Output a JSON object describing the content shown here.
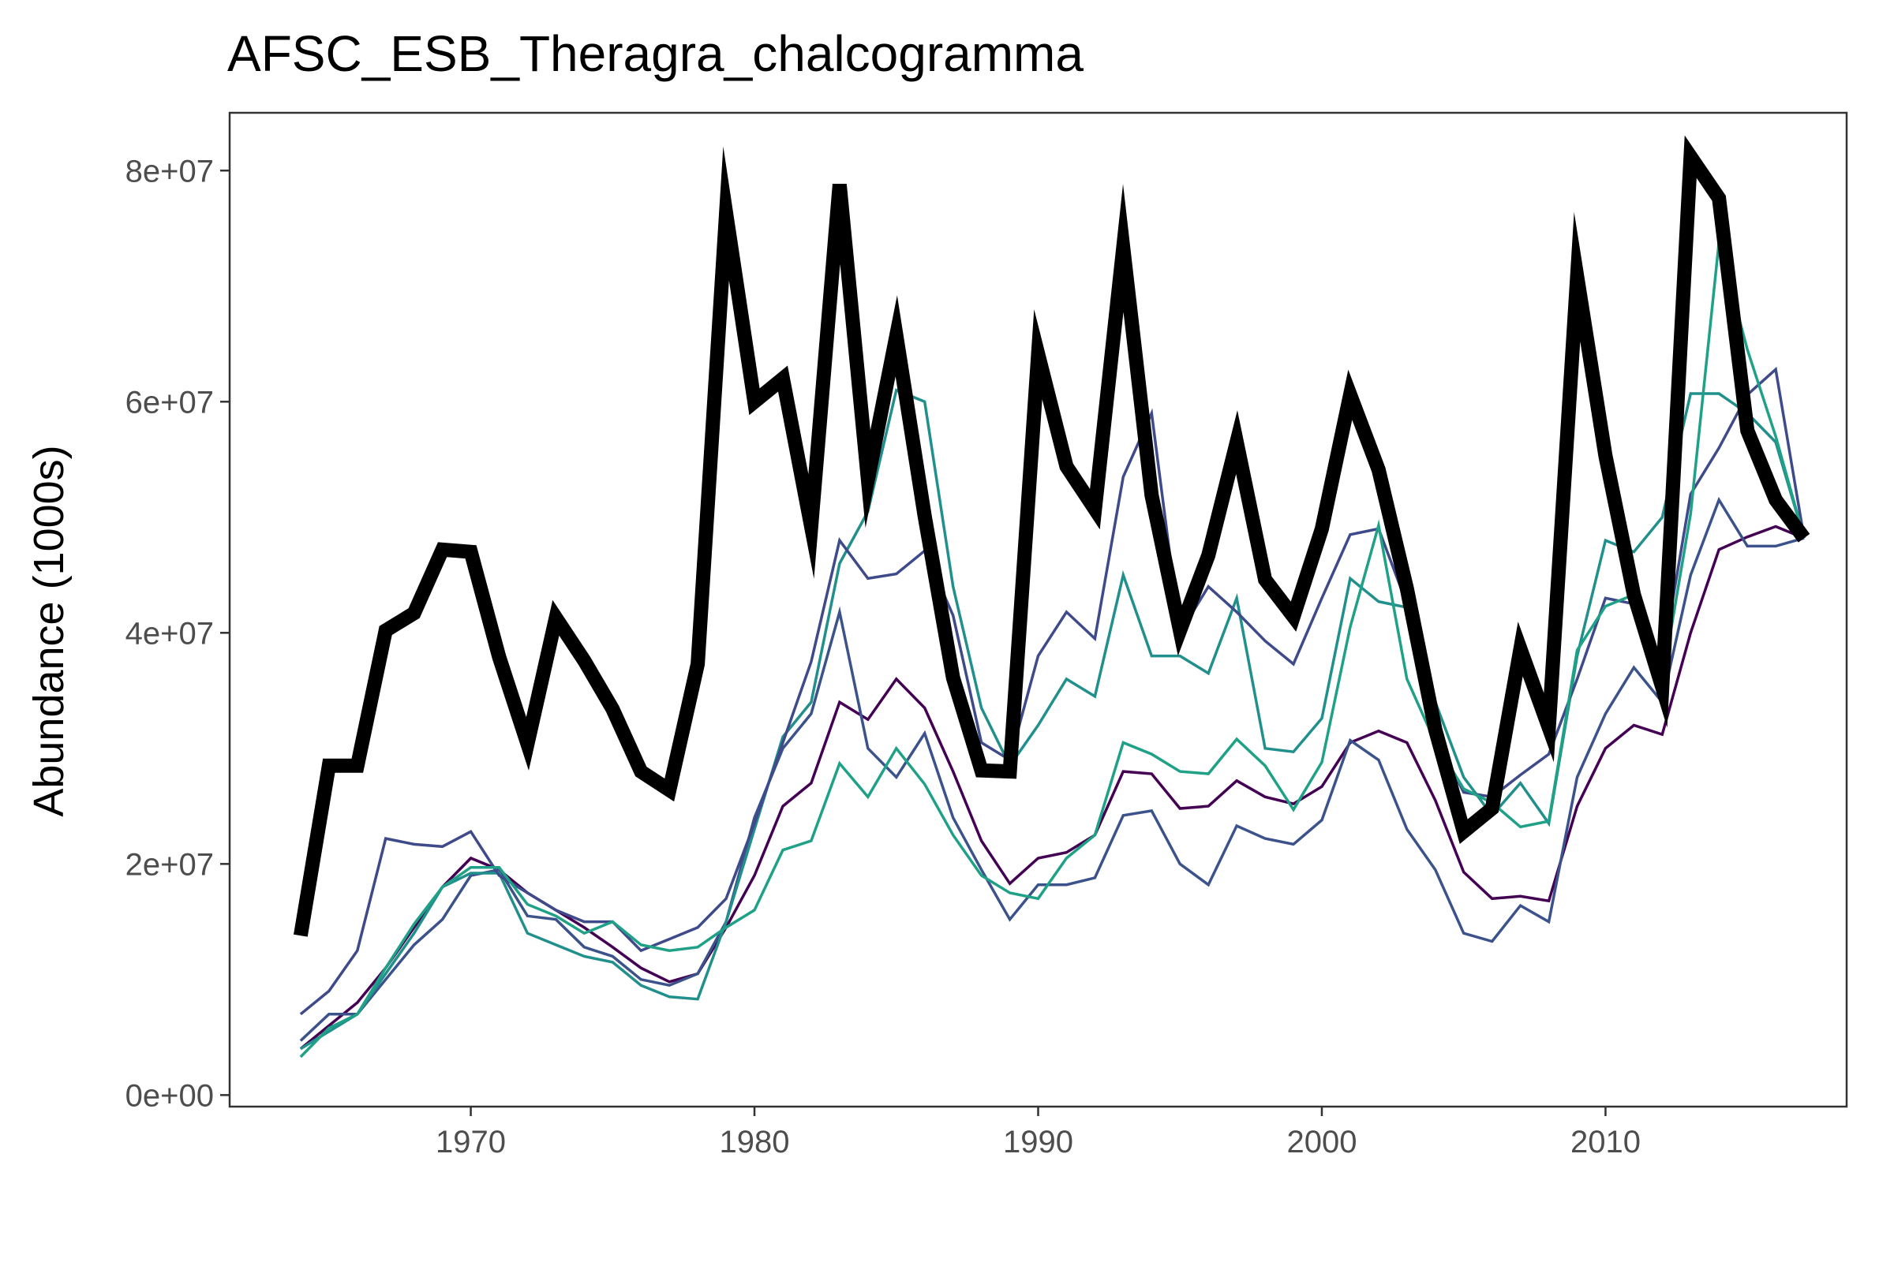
{
  "chart_data": {
    "type": "line",
    "title": "AFSC_ESB_Theragra_chalcogramma",
    "xlabel": "",
    "ylabel": "Abundance (1000s)",
    "xlim": [
      1961.5,
      2018.5
    ],
    "ylim": [
      -1000000,
      85000000
    ],
    "x_ticks": [
      1970,
      1980,
      1990,
      2000,
      2010
    ],
    "x_tick_labels": [
      "1970",
      "1980",
      "1990",
      "2000",
      "2010"
    ],
    "y_ticks": [
      0,
      20000000,
      40000000,
      60000000,
      80000000
    ],
    "y_tick_labels": [
      "0e+00",
      "2e+07",
      "4e+07",
      "6e+07",
      "8e+07"
    ],
    "grid": false,
    "legend": "none",
    "x": [
      1964,
      1965,
      1966,
      1967,
      1968,
      1969,
      1970,
      1971,
      1972,
      1973,
      1974,
      1975,
      1976,
      1977,
      1978,
      1979,
      1980,
      1981,
      1982,
      1983,
      1984,
      1985,
      1986,
      1987,
      1988,
      1989,
      1990,
      1991,
      1992,
      1993,
      1994,
      1995,
      1996,
      1997,
      1998,
      1999,
      2000,
      2001,
      2002,
      2003,
      2004,
      2005,
      2006,
      2007,
      2008,
      2009,
      2010,
      2011,
      2012,
      2013,
      2014,
      2015,
      2016,
      2017
    ],
    "series": [
      {
        "color": "#000000",
        "width": 18,
        "values": [
          13800000,
          28500000,
          28500000,
          40200000,
          41700000,
          47200000,
          47000000,
          37900000,
          30400000,
          41300000,
          37600000,
          33400000,
          28000000,
          26400000,
          37300000,
          76300000,
          60000000,
          62000000,
          49200000,
          78800000,
          53300000,
          65700000,
          50100000,
          36100000,
          28100000,
          28000000,
          64100000,
          54400000,
          50700000,
          73300000,
          51900000,
          40200000,
          46700000,
          56500000,
          44600000,
          41400000,
          49000000,
          60600000,
          54100000,
          43800000,
          31600000,
          22800000,
          24800000,
          38600000,
          31800000,
          70800000,
          55300000,
          43300000,
          35300000,
          81200000,
          77600000,
          57500000,
          51500000,
          48200000
        ]
      },
      {
        "color": "#440154",
        "width": 3.5,
        "values": [
          4000000,
          6000000,
          8000000,
          11000000,
          14500000,
          18000000,
          20500000,
          19500000,
          17500000,
          16000000,
          14500000,
          12800000,
          11000000,
          9800000,
          10500000,
          14500000,
          19000000,
          25000000,
          27000000,
          34000000,
          32500000,
          36000000,
          33500000,
          28000000,
          22000000,
          18300000,
          20500000,
          21000000,
          22500000,
          28000000,
          27800000,
          24800000,
          25000000,
          27200000,
          25800000,
          25200000,
          26700000,
          30500000,
          31500000,
          30500000,
          25500000,
          19300000,
          17000000,
          17200000,
          16800000,
          25000000,
          30000000,
          32000000,
          31200000,
          40000000,
          47200000,
          48300000,
          49200000,
          48200000
        ]
      },
      {
        "color": "#3b528b",
        "width": 3.5,
        "values": [
          4700000,
          7000000,
          7000000,
          10000000,
          13000000,
          15200000,
          19000000,
          19500000,
          15500000,
          15200000,
          12800000,
          12000000,
          10000000,
          9500000,
          10500000,
          15000000,
          24000000,
          30000000,
          33000000,
          41800000,
          30000000,
          27500000,
          31300000,
          24000000,
          19500000,
          15200000,
          18200000,
          18200000,
          18800000,
          24200000,
          24600000,
          20000000,
          18200000,
          23300000,
          22200000,
          21700000,
          23800000,
          30700000,
          29000000,
          23000000,
          19500000,
          14000000,
          13300000,
          16400000,
          15000000,
          27500000,
          33000000,
          37000000,
          34000000,
          45000000,
          51500000,
          47500000,
          47500000,
          48200000
        ]
      },
      {
        "color": "#21908c",
        "width": 3.5,
        "values": [
          4000000,
          5500000,
          7000000,
          10500000,
          14000000,
          18000000,
          19200000,
          19200000,
          14000000,
          13000000,
          12000000,
          11500000,
          9500000,
          8500000,
          8300000,
          15000000,
          23000000,
          31000000,
          34000000,
          46000000,
          50500000,
          61000000,
          60000000,
          44000000,
          33500000,
          28500000,
          32000000,
          36000000,
          34500000,
          45000000,
          38000000,
          38000000,
          36500000,
          43000000,
          30000000,
          29700000,
          32600000,
          44700000,
          42700000,
          42200000,
          34000000,
          27500000,
          24200000,
          27000000,
          23500000,
          38000000,
          48000000,
          47000000,
          50000000,
          60700000,
          60700000,
          59000000,
          56500000,
          48200000
        ]
      },
      {
        "color": "#3e4a89",
        "width": 3.5,
        "values": [
          7000000,
          9000000,
          12500000,
          22200000,
          21700000,
          21500000,
          22800000,
          19000000,
          17500000,
          16000000,
          15000000,
          15000000,
          12500000,
          13500000,
          14500000,
          17000000,
          23500000,
          30500000,
          37500000,
          48000000,
          44700000,
          45100000,
          47100000,
          41500000,
          30500000,
          29000000,
          38000000,
          41800000,
          39500000,
          53500000,
          59000000,
          40000000,
          44000000,
          41800000,
          39300000,
          37300000,
          43000000,
          48500000,
          49000000,
          42500000,
          31000000,
          26200000,
          25800000,
          27700000,
          29500000,
          36000000,
          43000000,
          42500000,
          37500000,
          52000000,
          56000000,
          60600000,
          62800000,
          48200000
        ]
      },
      {
        "color": "#1fa187",
        "width": 3.5,
        "values": [
          3300000,
          5800000,
          7000000,
          11000000,
          14800000,
          18000000,
          19700000,
          19700000,
          16500000,
          15500000,
          14000000,
          15000000,
          13000000,
          12500000,
          12800000,
          14500000,
          16000000,
          21200000,
          22000000,
          28700000,
          25800000,
          30000000,
          26900000,
          22500000,
          19000000,
          17500000,
          17000000,
          20500000,
          22500000,
          30500000,
          29500000,
          28000000,
          27800000,
          30800000,
          28500000,
          24700000,
          28800000,
          40500000,
          49300000,
          36000000,
          30500000,
          26500000,
          25300000,
          23200000,
          23700000,
          38500000,
          42300000,
          43300000,
          35800000,
          50300000,
          73800000,
          64500000,
          57000000,
          48200000
        ]
      }
    ]
  }
}
